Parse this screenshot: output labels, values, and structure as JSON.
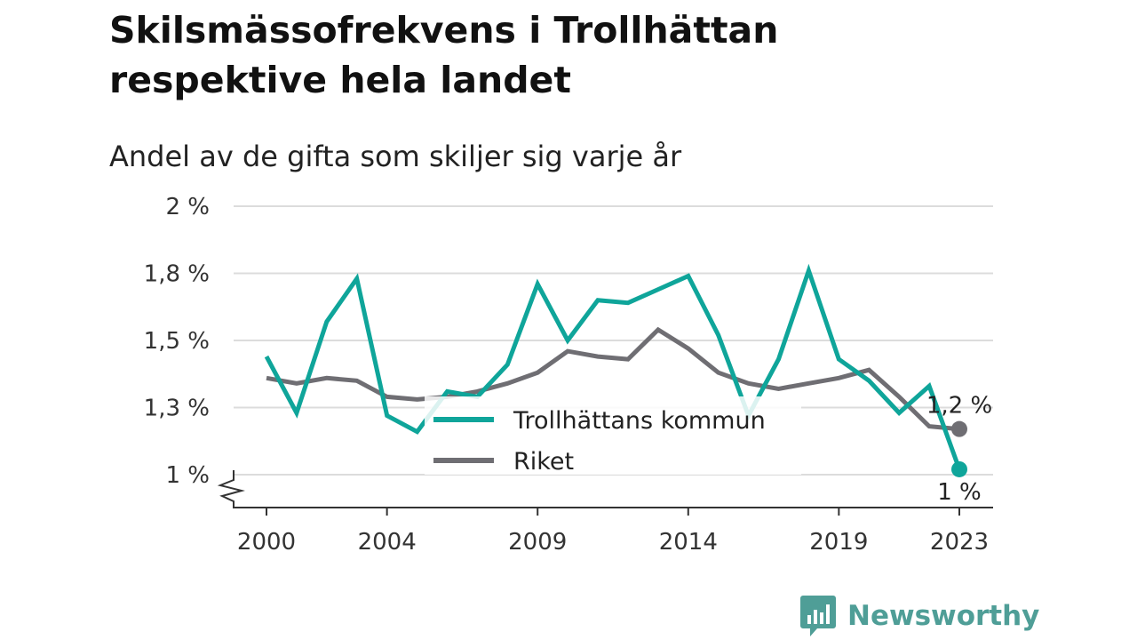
{
  "title": "Skilsmässofrekvens i Trollhättan respektive hela landet",
  "subtitle": "Andel av de gifta som skiljer sig varje år",
  "brand": {
    "name": "Newsworthy",
    "icon": "newsworthy-logo-icon",
    "color": "#4f9e97"
  },
  "chart_data": {
    "type": "line",
    "title": "Skilsmässofrekvens i Trollhättan respektive hela landet",
    "subtitle": "Andel av de gifta som skiljer sig varje år",
    "xlabel": "",
    "ylabel": "",
    "x": [
      2000,
      2001,
      2002,
      2003,
      2004,
      2005,
      2006,
      2007,
      2008,
      2009,
      2010,
      2011,
      2012,
      2013,
      2014,
      2015,
      2016,
      2017,
      2018,
      2019,
      2020,
      2021,
      2022,
      2023
    ],
    "x_ticks": [
      2000,
      2004,
      2009,
      2014,
      2019,
      2023
    ],
    "x_tick_labels": [
      "2000",
      "2004",
      "2009",
      "2014",
      "2019",
      "2023"
    ],
    "ylim": [
      1.0,
      2.0
    ],
    "y_ticks": [
      1.0,
      1.25,
      1.5,
      1.75,
      2.0
    ],
    "y_tick_labels": [
      "1 %",
      "1,3 %",
      "1,5 %",
      "1,8 %",
      "2 %"
    ],
    "y_axis_break": true,
    "grid": "horizontal",
    "legend": {
      "placement": "center-bottom"
    },
    "series": [
      {
        "name": "Trollhättans kommun",
        "color": "#0fa59a",
        "values": [
          1.44,
          1.23,
          1.57,
          1.73,
          1.22,
          1.16,
          1.31,
          1.29,
          1.41,
          1.71,
          1.5,
          1.65,
          1.64,
          1.69,
          1.74,
          1.52,
          1.22,
          1.43,
          1.76,
          1.43,
          1.35,
          1.23,
          1.33,
          1.02
        ],
        "end_label": "1 %"
      },
      {
        "name": "Riket",
        "color": "#6f6e73",
        "values": [
          1.36,
          1.34,
          1.36,
          1.35,
          1.29,
          1.28,
          1.29,
          1.31,
          1.34,
          1.38,
          1.46,
          1.44,
          1.43,
          1.54,
          1.47,
          1.38,
          1.34,
          1.32,
          1.34,
          1.36,
          1.39,
          1.29,
          1.18,
          1.17
        ],
        "end_label": "1,2 %"
      }
    ]
  }
}
